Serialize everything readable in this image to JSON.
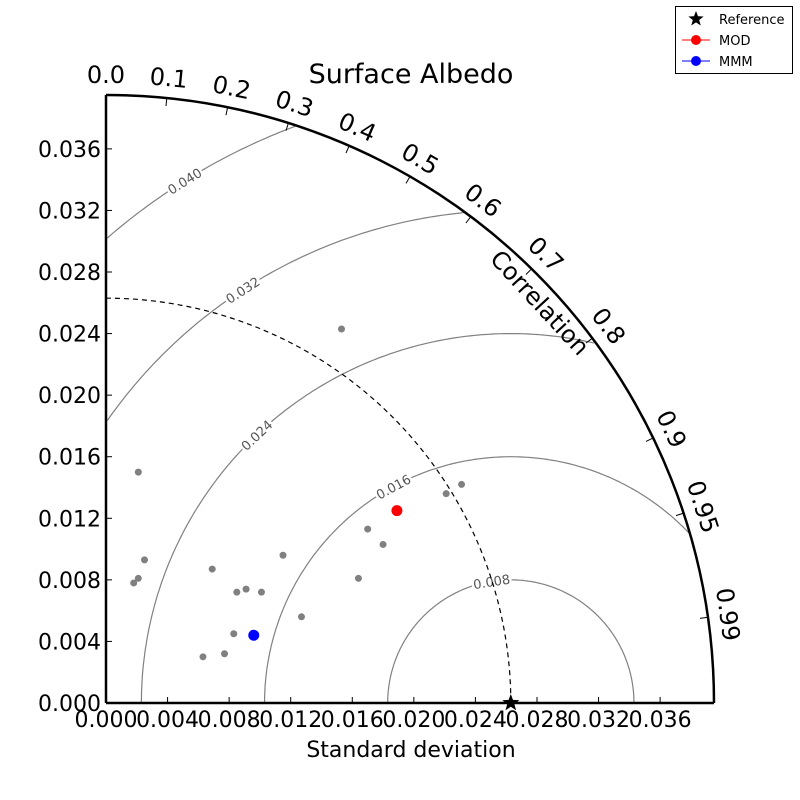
{
  "chart_data": {
    "type": "scatter",
    "subtype": "taylor-diagram",
    "title": "Surface Albedo",
    "xlabel": "Standard deviation",
    "correlation_label": "Correlation",
    "std_max": 0.0395,
    "std_ticks": [
      "0.000",
      "0.004",
      "0.008",
      "0.012",
      "0.016",
      "0.020",
      "0.024",
      "0.028",
      "0.032",
      "0.036"
    ],
    "std_tick_values": [
      0,
      0.004,
      0.008,
      0.012,
      0.016,
      0.02,
      0.024,
      0.028,
      0.032,
      0.036
    ],
    "correlation_ticks": [
      "0.0",
      "0.1",
      "0.2",
      "0.3",
      "0.4",
      "0.5",
      "0.6",
      "0.7",
      "0.8",
      "0.9",
      "0.95",
      "0.99"
    ],
    "correlation_tick_values": [
      0,
      0.1,
      0.2,
      0.3,
      0.4,
      0.5,
      0.6,
      0.7,
      0.8,
      0.9,
      0.95,
      0.99
    ],
    "reference_std": 0.0263,
    "rms_contours": [
      "0.008",
      "0.016",
      "0.024",
      "0.032",
      "0.040"
    ],
    "rms_contour_values": [
      0.008,
      0.016,
      0.024,
      0.032,
      0.04
    ],
    "legend_position": "top-right",
    "legend": [
      {
        "label": "Reference",
        "marker": "star",
        "color": "#000000"
      },
      {
        "label": "MOD",
        "marker": "circle",
        "color": "#ff0000"
      },
      {
        "label": "MMM",
        "marker": "circle",
        "color": "#0000ff"
      }
    ],
    "series": [
      {
        "name": "Reference",
        "color": "#000000",
        "points": [
          {
            "x": 0.0263,
            "y": 0.0
          }
        ]
      },
      {
        "name": "MOD",
        "color": "#ff0000",
        "points": [
          {
            "x": 0.0189,
            "y": 0.0125
          }
        ]
      },
      {
        "name": "MMM",
        "color": "#0000ff",
        "points": [
          {
            "x": 0.0096,
            "y": 0.0044
          }
        ]
      },
      {
        "name": "models",
        "color": "#808080",
        "points": [
          {
            "x": 0.0021,
            "y": 0.015
          },
          {
            "x": 0.0025,
            "y": 0.0093
          },
          {
            "x": 0.0021,
            "y": 0.0081
          },
          {
            "x": 0.0018,
            "y": 0.0078
          },
          {
            "x": 0.0069,
            "y": 0.0087
          },
          {
            "x": 0.0085,
            "y": 0.0072
          },
          {
            "x": 0.0091,
            "y": 0.0074
          },
          {
            "x": 0.0101,
            "y": 0.0072
          },
          {
            "x": 0.0115,
            "y": 0.0096
          },
          {
            "x": 0.0127,
            "y": 0.0056
          },
          {
            "x": 0.0083,
            "y": 0.0045
          },
          {
            "x": 0.0063,
            "y": 0.003
          },
          {
            "x": 0.0077,
            "y": 0.0032
          },
          {
            "x": 0.0153,
            "y": 0.0243
          },
          {
            "x": 0.0164,
            "y": 0.0081
          },
          {
            "x": 0.017,
            "y": 0.0113
          },
          {
            "x": 0.018,
            "y": 0.0103
          },
          {
            "x": 0.0221,
            "y": 0.0136
          },
          {
            "x": 0.0231,
            "y": 0.0142
          }
        ]
      }
    ]
  }
}
